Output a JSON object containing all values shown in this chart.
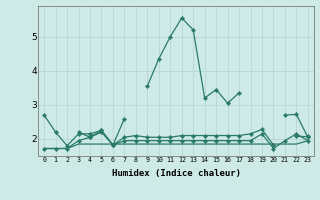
{
  "title": "",
  "xlabel": "Humidex (Indice chaleur)",
  "ylabel": "",
  "background_color": "#ceeae6",
  "grid_color": "#b8d8d4",
  "line_color": "#2a7a6a",
  "x_values": [
    0,
    1,
    2,
    3,
    4,
    5,
    6,
    7,
    8,
    9,
    10,
    11,
    12,
    13,
    14,
    15,
    16,
    17,
    18,
    19,
    20,
    21,
    22,
    23
  ],
  "series1": [
    2.7,
    2.2,
    1.8,
    2.15,
    2.15,
    2.25,
    1.82,
    2.6,
    null,
    3.55,
    4.35,
    5.0,
    5.55,
    5.2,
    3.2,
    3.45,
    3.05,
    3.35,
    null,
    null,
    null,
    2.7,
    2.72,
    2.05
  ],
  "series2": [
    null,
    null,
    null,
    2.2,
    2.05,
    2.25,
    1.82,
    2.05,
    2.1,
    2.05,
    2.05,
    2.05,
    2.1,
    2.1,
    2.1,
    2.1,
    2.1,
    2.1,
    2.15,
    2.28,
    1.82,
    null,
    2.1,
    2.1
  ],
  "series3": [
    1.72,
    1.72,
    1.72,
    1.85,
    1.85,
    1.85,
    1.85,
    1.85,
    1.85,
    1.85,
    1.85,
    1.85,
    1.85,
    1.85,
    1.85,
    1.85,
    1.85,
    1.85,
    1.85,
    1.85,
    1.85,
    1.85,
    1.85,
    1.95
  ],
  "series4": [
    1.72,
    1.72,
    1.72,
    1.95,
    2.05,
    2.2,
    1.82,
    1.95,
    1.95,
    1.95,
    1.95,
    1.95,
    1.95,
    1.95,
    1.95,
    1.95,
    1.95,
    1.95,
    1.95,
    2.15,
    1.72,
    1.95,
    2.15,
    1.95
  ],
  "ylim": [
    1.5,
    5.9
  ],
  "yticks": [
    2,
    3,
    4,
    5
  ],
  "xtick_labels": [
    "0",
    "1",
    "2",
    "3",
    "4",
    "5",
    "6",
    "7",
    "8",
    "9",
    "10",
    "11",
    "12",
    "13",
    "14",
    "15",
    "16",
    "17",
    "18",
    "19",
    "20",
    "21",
    "22",
    "23"
  ]
}
